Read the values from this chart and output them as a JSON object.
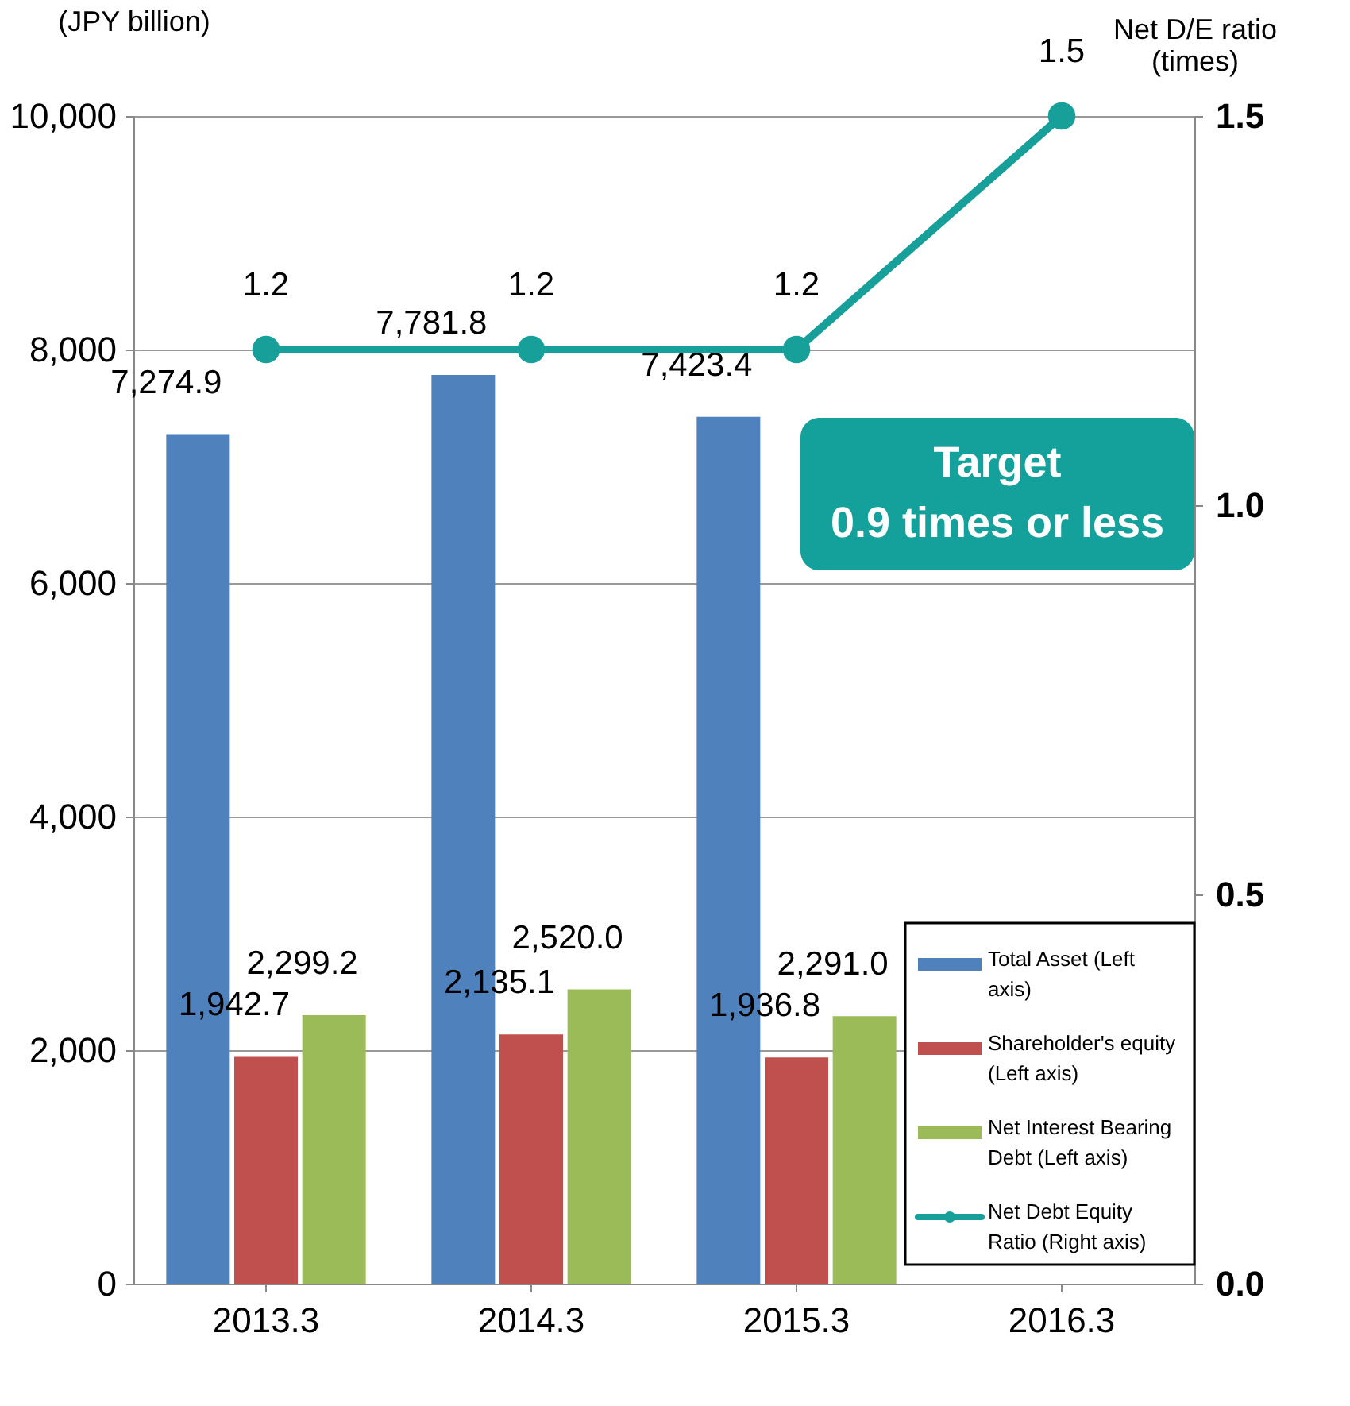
{
  "chart_data": {
    "type": "bar",
    "ylabel": "(JPY billion)",
    "y2label": "Net D/E ratio\n(times)",
    "categories": [
      "2013.3",
      "2014.3",
      "2015.3",
      "2016.3"
    ],
    "series": [
      {
        "name": "Total Asset (Left axis)",
        "color": "#4f81bd",
        "values": [
          7274.9,
          7781.8,
          7423.4,
          null
        ],
        "value_labels": [
          "7,274.9",
          "7,781.8",
          "7,423.4",
          null
        ]
      },
      {
        "name": "Shareholder's equity (Left axis)",
        "color": "#c0504d",
        "values": [
          1942.7,
          2135.1,
          1936.8,
          null
        ],
        "value_labels": [
          "1,942.7",
          "2,135.1",
          "1,936.8",
          null
        ]
      },
      {
        "name": "Net Interest Bearing Debt (Left axis)",
        "color": "#9bbb59",
        "values": [
          2299.2,
          2520.0,
          2291.0,
          null
        ],
        "value_labels": [
          "2,299.2",
          "2,520.0",
          "2,291.0",
          null
        ]
      },
      {
        "name": "Net Debt Equity Ratio (Right axis)",
        "type": "line",
        "axis": "y2",
        "marker": "circle",
        "color": "#17a09a",
        "values": [
          1.2,
          1.2,
          1.2,
          1.5
        ],
        "value_labels": [
          "1.2",
          "1.2",
          "1.2",
          "1.5"
        ]
      }
    ],
    "ylim": [
      0,
      10000
    ],
    "yticks": [
      {
        "value": 0,
        "label": "0"
      },
      {
        "value": 2000,
        "label": "2,000"
      },
      {
        "value": 4000,
        "label": "4,000"
      },
      {
        "value": 6000,
        "label": "6,000"
      },
      {
        "value": 8000,
        "label": "8,000"
      },
      {
        "value": 10000,
        "label": "10,000"
      }
    ],
    "y2lim": [
      0,
      1.5
    ],
    "y2ticks": [
      {
        "value": 0,
        "label": "0.0"
      },
      {
        "value": 0.5,
        "label": "0.5"
      },
      {
        "value": 1.0,
        "label": "1.0"
      },
      {
        "value": 1.5,
        "label": "1.5"
      }
    ],
    "annotations": [
      "Target\n0.9 times or less"
    ],
    "grid": "y",
    "legend": "bottom right"
  }
}
